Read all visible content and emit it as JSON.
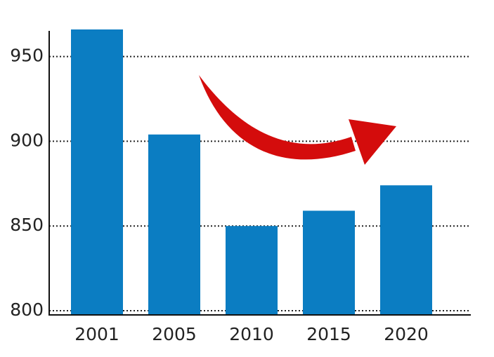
{
  "chart_data": {
    "type": "bar",
    "categories": [
      "2001",
      "2005",
      "2010",
      "2015",
      "2020"
    ],
    "values": [
      966,
      904,
      850,
      859,
      874
    ],
    "color": "#0b7dc2",
    "ylim": [
      797.5,
      966
    ],
    "yticks": [
      800,
      850,
      900,
      950
    ],
    "grid": true
  }
}
